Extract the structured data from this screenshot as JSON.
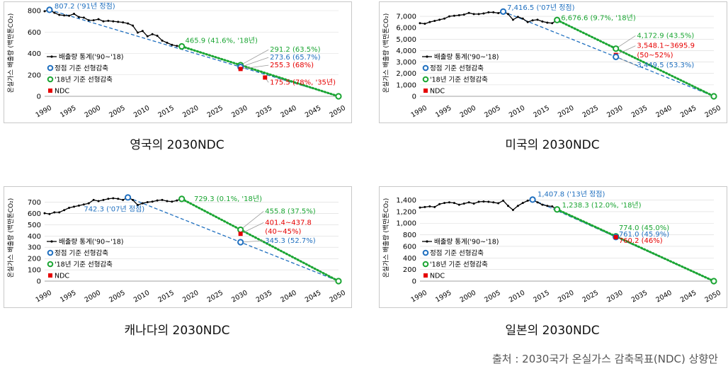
{
  "source_note": "출처 : 2030국가 온실가스 감축목표(NDC) 상향안",
  "colors": {
    "history": "#000000",
    "peak": "#1f6fbf",
    "base18": "#1aa532",
    "ndc": "#e60000",
    "grid": "#d9d9d9"
  },
  "chart_data": [
    {
      "type": "line",
      "country": "uk",
      "caption": "영국의 2030NDC",
      "ylabel": "온실가스 배출량 (백만톤CO₂)",
      "yticks": [
        "0",
        "200",
        "400",
        "600",
        "800"
      ],
      "ylim": [
        0,
        800
      ],
      "xticks": [
        "1990",
        "1995",
        "2000",
        "2005",
        "2010",
        "2015",
        "2020",
        "2025",
        "2030",
        "2035",
        "2040",
        "2045",
        "2050"
      ],
      "xlim": [
        1990,
        2050
      ],
      "legend": {
        "history": "배출량 통계('90~'18)",
        "peak": "정점 기준 선형감축",
        "base18": "'18년 기준 선형감축",
        "ndc": "NDC"
      },
      "history": {
        "x": [
          1990,
          1991,
          1992,
          1993,
          1994,
          1995,
          1996,
          1997,
          1998,
          1999,
          2000,
          2001,
          2002,
          2003,
          2004,
          2005,
          2006,
          2007,
          2008,
          2009,
          2010,
          2011,
          2012,
          2013,
          2014,
          2015,
          2016,
          2017,
          2018
        ],
        "y": [
          794,
          807.2,
          780,
          760,
          755,
          752,
          770,
          740,
          735,
          710,
          710,
          720,
          700,
          705,
          700,
          695,
          690,
          680,
          660,
          595,
          610,
          560,
          580,
          565,
          520,
          500,
          480,
          470,
          465.9
        ]
      },
      "peak_line": {
        "x": [
          1991,
          2050
        ],
        "y": [
          807.2,
          0
        ]
      },
      "base18_line": {
        "x": [
          2018,
          2050
        ],
        "y": [
          465.9,
          0
        ]
      },
      "markers": [
        {
          "kind": "peak",
          "x": 1991,
          "y": 807.2
        },
        {
          "kind": "base18",
          "x": 2018,
          "y": 465.9
        },
        {
          "kind": "base18",
          "x": 2030,
          "y": 291.2
        },
        {
          "kind": "peak",
          "x": 2030,
          "y": 273.6
        },
        {
          "kind": "ndc",
          "x": 2030,
          "y": 255.3
        },
        {
          "kind": "ndc",
          "x": 2035,
          "y": 175.5
        },
        {
          "kind": "base18",
          "x": 2050,
          "y": 0
        }
      ],
      "labels": [
        {
          "text": "807.2 ('91년 정점)",
          "color": "peak",
          "x": 1991,
          "y": 807.2,
          "lx": 1992,
          "ly": 820,
          "leader": false
        },
        {
          "text": "465.9 (41.6%, '18년)",
          "color": "base18",
          "x": 2018,
          "y": 465.9,
          "lx": 2018.7,
          "ly": 500,
          "leader": false
        },
        {
          "text": "291.2 (63.5%)",
          "color": "base18",
          "x": 2030,
          "y": 291.2,
          "lx": 2036,
          "ly": 415,
          "leader": true
        },
        {
          "text": "273.6 (65.7%)",
          "color": "peak",
          "x": 2030,
          "y": 273.6,
          "lx": 2036,
          "ly": 343,
          "leader": true
        },
        {
          "text": "255.3 (68%)",
          "color": "ndc",
          "x": 2030,
          "y": 255.3,
          "lx": 2036,
          "ly": 270,
          "leader": true
        },
        {
          "text": "175.5 (78%, '35년)",
          "color": "ndc",
          "x": 2035,
          "y": 175.5,
          "lx": 2036,
          "ly": 110,
          "leader": true
        }
      ]
    },
    {
      "type": "line",
      "country": "us",
      "caption": "미국의 2030NDC",
      "ylabel": "온실가스 배출량 (백만톤CO₂)",
      "yticks": [
        "0",
        "1,000",
        "2,000",
        "3,000",
        "4,000",
        "5,000",
        "6,000",
        "7,000"
      ],
      "ylim": [
        0,
        7500
      ],
      "xticks": [
        "1990",
        "1995",
        "2000",
        "2005",
        "2010",
        "2015",
        "2020",
        "2025",
        "2030",
        "2035",
        "2040",
        "2045",
        "2050"
      ],
      "xlim": [
        1990,
        2050
      ],
      "legend": {
        "history": "배출량 통계('90~'18)",
        "peak": "정점 기준 선형감축",
        "base18": "'18년 기준 선형감축",
        "ndc": "NDC"
      },
      "history": {
        "x": [
          1990,
          1991,
          1992,
          1993,
          1994,
          1995,
          1996,
          1997,
          1998,
          1999,
          2000,
          2001,
          2002,
          2003,
          2004,
          2005,
          2006,
          2007,
          2008,
          2009,
          2010,
          2011,
          2012,
          2013,
          2014,
          2015,
          2016,
          2017,
          2018
        ],
        "y": [
          6400,
          6350,
          6500,
          6600,
          6700,
          6800,
          7000,
          7050,
          7100,
          7150,
          7300,
          7200,
          7200,
          7250,
          7350,
          7350,
          7280,
          7416.5,
          7200,
          6700,
          6950,
          6800,
          6500,
          6650,
          6700,
          6550,
          6450,
          6400,
          6676.6
        ]
      },
      "peak_line": {
        "x": [
          2007,
          2050
        ],
        "y": [
          7416.5,
          0
        ]
      },
      "base18_line": {
        "x": [
          2018,
          2050
        ],
        "y": [
          6676.6,
          0
        ]
      },
      "markers": [
        {
          "kind": "peak",
          "x": 2007,
          "y": 7416.5
        },
        {
          "kind": "base18",
          "x": 2018,
          "y": 6676.6
        },
        {
          "kind": "base18",
          "x": 2030,
          "y": 4172.9
        },
        {
          "kind": "ndc",
          "x": 2030,
          "y": 3621.9
        },
        {
          "kind": "peak",
          "x": 2030,
          "y": 3449.5
        },
        {
          "kind": "base18",
          "x": 2050,
          "y": 0
        }
      ],
      "labels": [
        {
          "text": "7,416.5 ('07년 정점)",
          "color": "peak",
          "x": 2007,
          "y": 7416.5,
          "lx": 2007.8,
          "ly": 7560,
          "leader": false
        },
        {
          "text": "6,676.6 (9.7%, '18년)",
          "color": "base18",
          "x": 2018,
          "y": 6676.6,
          "lx": 2018.8,
          "ly": 6650,
          "leader": false
        },
        {
          "text": "4,172.9 (43.5%)",
          "color": "base18",
          "x": 2030,
          "y": 4172.9,
          "lx": 2034.3,
          "ly": 5120,
          "leader": true
        },
        {
          "text": "3,548.1~3695.9",
          "color": "ndc",
          "x": 2030,
          "y": 3621.9,
          "lx": 2034.3,
          "ly": 4240,
          "leader": true
        },
        {
          "text": "(50~52%)",
          "color": "ndc",
          "x": 2030,
          "y": 3621.9,
          "lx": 2034.3,
          "ly": 3420,
          "leader": false
        },
        {
          "text": "3,449.5 (53.3%)",
          "color": "peak",
          "x": 2030,
          "y": 3449.5,
          "lx": 2034.3,
          "ly": 2530,
          "leader": true
        }
      ]
    },
    {
      "type": "line",
      "country": "canada",
      "caption": "캐나다의 2030NDC",
      "ylabel": "온실가스 배출량 (백만톤CO₂)",
      "yticks": [
        "0",
        "100",
        "200",
        "300",
        "400",
        "500",
        "600",
        "700"
      ],
      "ylim": [
        0,
        760
      ],
      "xticks": [
        "1990",
        "1995",
        "2000",
        "2005",
        "2010",
        "2015",
        "2020",
        "2025",
        "2030",
        "2035",
        "2040",
        "2045",
        "2050"
      ],
      "xlim": [
        1990,
        2050
      ],
      "legend": {
        "history": "배출량 통계('90~'18)",
        "peak": "정점 기준 선형감축",
        "base18": "'18년 기준 선형감축",
        "ndc": "NDC"
      },
      "history": {
        "x": [
          1990,
          1991,
          1992,
          1993,
          1994,
          1995,
          1996,
          1997,
          1998,
          1999,
          2000,
          2001,
          2002,
          2003,
          2004,
          2005,
          2006,
          2007,
          2008,
          2009,
          2010,
          2011,
          2012,
          2013,
          2014,
          2015,
          2016,
          2017,
          2018
        ],
        "y": [
          602,
          595,
          610,
          610,
          630,
          650,
          660,
          670,
          680,
          690,
          720,
          710,
          720,
          730,
          735,
          730,
          720,
          742.3,
          720,
          675,
          690,
          700,
          705,
          715,
          720,
          710,
          705,
          715,
          729.3
        ]
      },
      "peak_line": {
        "x": [
          2007,
          2050
        ],
        "y": [
          742.3,
          0
        ]
      },
      "base18_line": {
        "x": [
          2018,
          2050
        ],
        "y": [
          729.3,
          0
        ]
      },
      "markers": [
        {
          "kind": "peak",
          "x": 2007,
          "y": 742.3
        },
        {
          "kind": "base18",
          "x": 2018,
          "y": 729.3
        },
        {
          "kind": "base18",
          "x": 2030,
          "y": 455.8
        },
        {
          "kind": "ndc",
          "x": 2030,
          "y": 419.5
        },
        {
          "kind": "peak",
          "x": 2030,
          "y": 345.3
        },
        {
          "kind": "base18",
          "x": 2050,
          "y": 0
        }
      ],
      "labels": [
        {
          "text": "742.3 ('07년 정점)",
          "color": "peak",
          "x": 2007,
          "y": 742.3,
          "lx": 1998,
          "ly": 620,
          "leader": false
        },
        {
          "text": "729.3 (0.1%, '18년)",
          "color": "base18",
          "x": 2018,
          "y": 729.3,
          "lx": 2020.5,
          "ly": 710,
          "leader": false
        },
        {
          "text": "455.8 (37.5%)",
          "color": "base18",
          "x": 2030,
          "y": 455.8,
          "lx": 2035,
          "ly": 600,
          "leader": true
        },
        {
          "text": "401.4~437.8",
          "color": "ndc",
          "x": 2030,
          "y": 419.5,
          "lx": 2035,
          "ly": 500,
          "leader": true
        },
        {
          "text": "(40~45%)",
          "color": "ndc",
          "x": 2030,
          "y": 419.5,
          "lx": 2035,
          "ly": 420,
          "leader": false
        },
        {
          "text": "345.3 (52.7%)",
          "color": "peak",
          "x": 2030,
          "y": 345.3,
          "lx": 2035,
          "ly": 340,
          "leader": true
        }
      ]
    },
    {
      "type": "line",
      "country": "japan",
      "caption": "일본의 2030NDC",
      "ylabel": "온실가스 배출량 (백만톤CO₂)",
      "yticks": [
        "0",
        "200",
        "400",
        "600",
        "800",
        "1,000",
        "1,200",
        "1,400"
      ],
      "ylim": [
        0,
        1480
      ],
      "xticks": [
        "1990",
        "1995",
        "2000",
        "2005",
        "2010",
        "2015",
        "2020",
        "2025",
        "2030",
        "2035",
        "2040",
        "2045",
        "2050"
      ],
      "xlim": [
        1990,
        2050
      ],
      "legend": {
        "history": "배출량 통계('90~'18)",
        "peak": "정점 기준 선형감축",
        "base18": "'18년 기준 선형감축",
        "ndc": "NDC"
      },
      "history": {
        "x": [
          1990,
          1991,
          1992,
          1993,
          1994,
          1995,
          1996,
          1997,
          1998,
          1999,
          2000,
          2001,
          2002,
          2003,
          2004,
          2005,
          2006,
          2007,
          2008,
          2009,
          2010,
          2011,
          2012,
          2013,
          2014,
          2015,
          2016,
          2017,
          2018
        ],
        "y": [
          1270,
          1280,
          1290,
          1280,
          1330,
          1350,
          1360,
          1350,
          1320,
          1340,
          1360,
          1340,
          1370,
          1375,
          1370,
          1360,
          1345,
          1390,
          1300,
          1230,
          1300,
          1350,
          1390,
          1407.8,
          1360,
          1320,
          1300,
          1290,
          1238.3
        ]
      },
      "peak_line": {
        "x": [
          2013,
          2050
        ],
        "y": [
          1407.8,
          0
        ]
      },
      "base18_line": {
        "x": [
          2018,
          2050
        ],
        "y": [
          1238.3,
          0
        ]
      },
      "markers": [
        {
          "kind": "peak",
          "x": 2013,
          "y": 1407.8
        },
        {
          "kind": "base18",
          "x": 2018,
          "y": 1238.3
        },
        {
          "kind": "base18",
          "x": 2030,
          "y": 774.0
        },
        {
          "kind": "peak",
          "x": 2030,
          "y": 761.0
        },
        {
          "kind": "ndc",
          "x": 2030,
          "y": 760.2
        },
        {
          "kind": "base18",
          "x": 2050,
          "y": 0
        }
      ],
      "labels": [
        {
          "text": "1,407.8 ('13년 정점)",
          "color": "peak",
          "x": 2013,
          "y": 1407.8,
          "lx": 2014,
          "ly": 1460,
          "leader": false
        },
        {
          "text": "1,238.3 (12.0%, '18년)",
          "color": "base18",
          "x": 2018,
          "y": 1238.3,
          "lx": 2019,
          "ly": 1275,
          "leader": false
        },
        {
          "text": "774.0 (45.0%)",
          "color": "base18",
          "x": 2030,
          "y": 774.0,
          "lx": 2030.6,
          "ly": 880,
          "leader": false
        },
        {
          "text": "761.0 (45.9%)",
          "color": "peak",
          "x": 2030,
          "y": 761.0,
          "lx": 2030.6,
          "ly": 770,
          "leader": false
        },
        {
          "text": "760.2 (46%)",
          "color": "ndc",
          "x": 2030,
          "y": 760.2,
          "lx": 2030.6,
          "ly": 660,
          "leader": false
        }
      ]
    }
  ]
}
